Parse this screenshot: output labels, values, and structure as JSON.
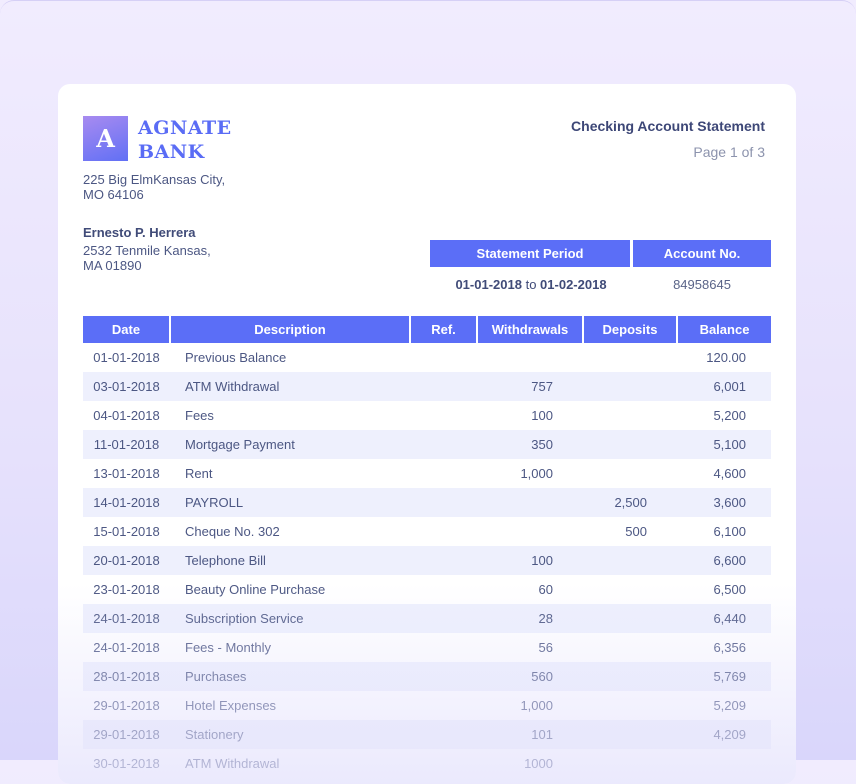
{
  "bank": {
    "logo_letter": "A",
    "name_line1": "AGNATE",
    "name_line2": "BANK",
    "address_line1": "225 Big ElmKansas City,",
    "address_line2": "MO 64106"
  },
  "customer": {
    "name": "Ernesto P. Herrera",
    "address_line1": "2532 Tenmile Kansas,",
    "address_line2": "MA 01890"
  },
  "statement": {
    "title": "Checking Account Statement",
    "page": "Page 1 of 3",
    "period_label": "Statement Period",
    "period_from": "01-01-2018",
    "period_to_word": "to",
    "period_to": "01-02-2018",
    "account_label": "Account No.",
    "account_no": "84958645"
  },
  "table": {
    "columns": [
      "Date",
      "Description",
      "Ref.",
      "Withdrawals",
      "Deposits",
      "Balance"
    ],
    "rows": [
      [
        "01-01-2018",
        "Previous Balance",
        "",
        "",
        "",
        "120.00"
      ],
      [
        "03-01-2018",
        "ATM Withdrawal",
        "",
        "757",
        "",
        "6,001"
      ],
      [
        "04-01-2018",
        "Fees",
        "",
        "100",
        "",
        "5,200"
      ],
      [
        "11-01-2018",
        "Mortgage Payment",
        "",
        "350",
        "",
        "5,100"
      ],
      [
        "13-01-2018",
        "Rent",
        "",
        "1,000",
        "",
        "4,600"
      ],
      [
        "14-01-2018",
        "PAYROLL",
        "",
        "",
        "2,500",
        "3,600"
      ],
      [
        "15-01-2018",
        "Cheque No. 302",
        "",
        "",
        "500",
        "6,100"
      ],
      [
        "20-01-2018",
        "Telephone Bill",
        "",
        "100",
        "",
        "6,600"
      ],
      [
        "23-01-2018",
        "Beauty Online Purchase",
        "",
        "60",
        "",
        "6,500"
      ],
      [
        "24-01-2018",
        "Subscription Service",
        "",
        "28",
        "",
        "6,440"
      ],
      [
        "24-01-2018",
        "Fees - Monthly",
        "",
        "56",
        "",
        "6,356"
      ],
      [
        "28-01-2018",
        "Purchases",
        "",
        "560",
        "",
        "5,769"
      ],
      [
        "29-01-2018",
        "Hotel Expenses",
        "",
        "1,000",
        "",
        "5,209"
      ],
      [
        "29-01-2018",
        "Stationery",
        "",
        "101",
        "",
        "4,209"
      ],
      [
        "30-01-2018",
        "ATM Withdrawal",
        "",
        "1000",
        "",
        ""
      ]
    ]
  },
  "colors": {
    "accent": "#5b6ef7",
    "row_alt": "#eef0fd",
    "text": "#404b78"
  }
}
